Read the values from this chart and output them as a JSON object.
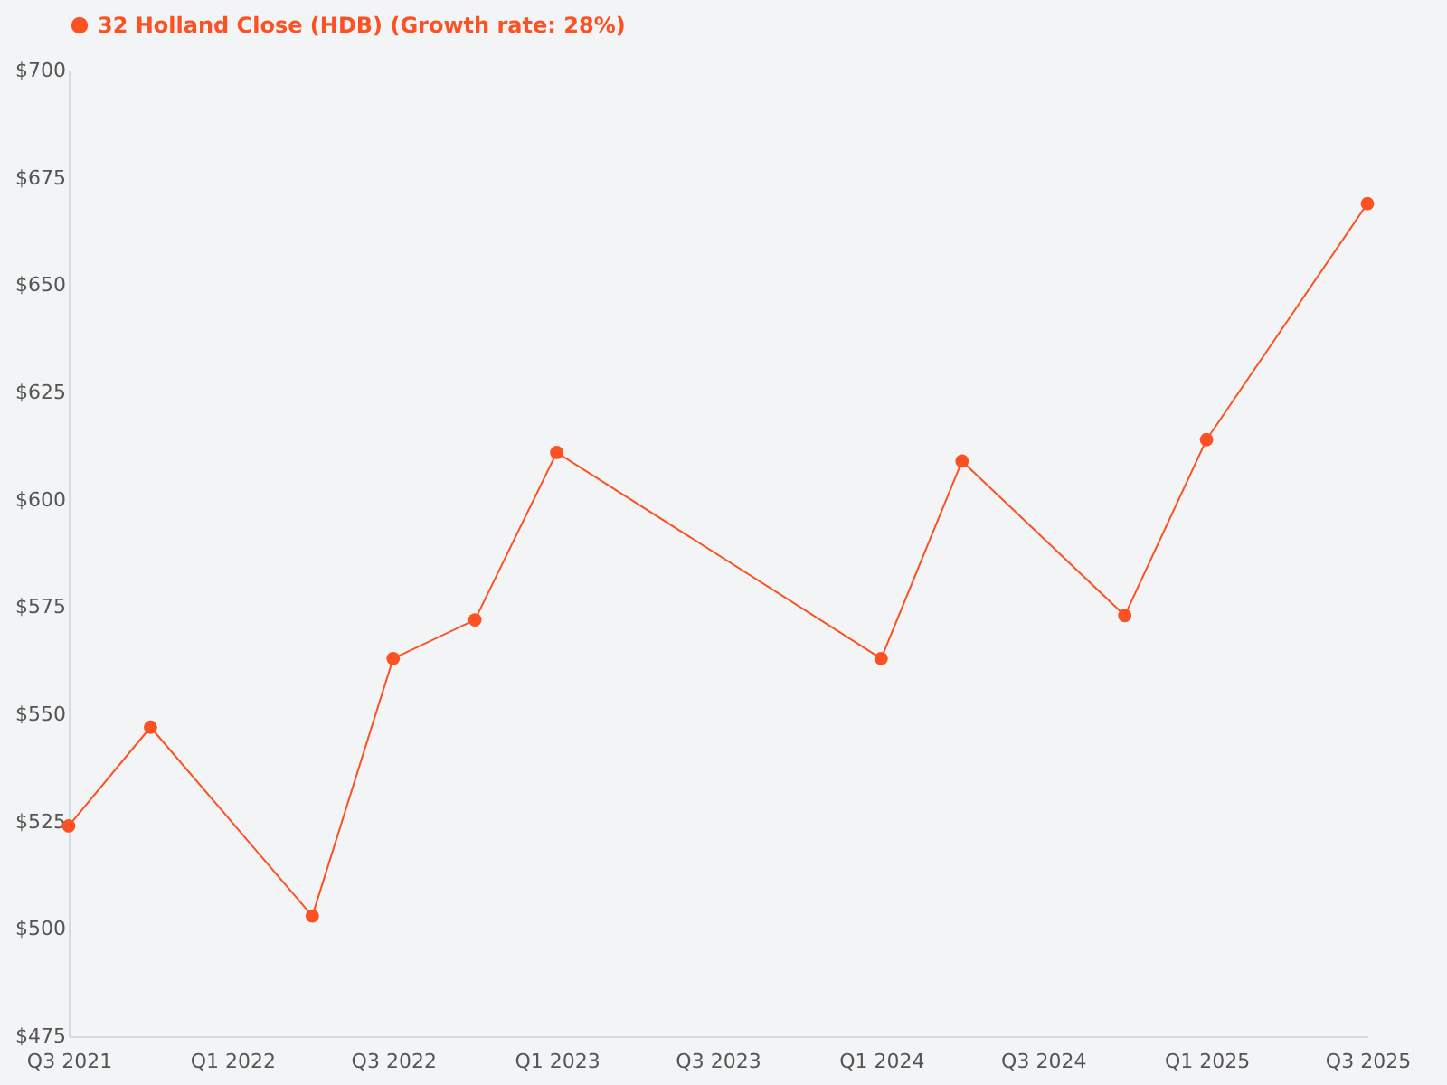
{
  "chart_data": {
    "type": "line",
    "x": [
      "2021-07",
      "2021-10",
      "2022-04",
      "2022-07",
      "2022-10",
      "2023-01",
      "2024-01",
      "2024-04",
      "2024-10",
      "2025-01",
      "2025-07"
    ],
    "series": [
      {
        "name": "32 Holland Close (HDB) (Growth rate: 28%)",
        "color": "#fc5122",
        "values": [
          524,
          547,
          503,
          563,
          572,
          611,
          563,
          609,
          573,
          614,
          669
        ]
      }
    ],
    "xlim": [
      "2021-07",
      "2025-07"
    ],
    "xticks": [
      {
        "value": "2021-07",
        "label": "Q3 2021"
      },
      {
        "value": "2022-01",
        "label": "Q1 2022"
      },
      {
        "value": "2022-07",
        "label": "Q3 2022"
      },
      {
        "value": "2023-01",
        "label": "Q1 2023"
      },
      {
        "value": "2023-07",
        "label": "Q3 2023"
      },
      {
        "value": "2024-01",
        "label": "Q1 2024"
      },
      {
        "value": "2024-07",
        "label": "Q3 2024"
      },
      {
        "value": "2025-01",
        "label": "Q1 2025"
      },
      {
        "value": "2025-07",
        "label": "Q3 2025"
      }
    ],
    "ylim": [
      475,
      700
    ],
    "yticks": [
      {
        "value": 475,
        "label": "$475"
      },
      {
        "value": 500,
        "label": "$500"
      },
      {
        "value": 525,
        "label": "$525"
      },
      {
        "value": 550,
        "label": "$550"
      },
      {
        "value": 575,
        "label": "$575"
      },
      {
        "value": 600,
        "label": "$600"
      },
      {
        "value": 625,
        "label": "$625"
      },
      {
        "value": 650,
        "label": "$650"
      },
      {
        "value": 675,
        "label": "$675"
      },
      {
        "value": 700,
        "label": "$700"
      }
    ],
    "grid": false,
    "legend": "top left",
    "marker": "circle",
    "line_style": "solid"
  }
}
